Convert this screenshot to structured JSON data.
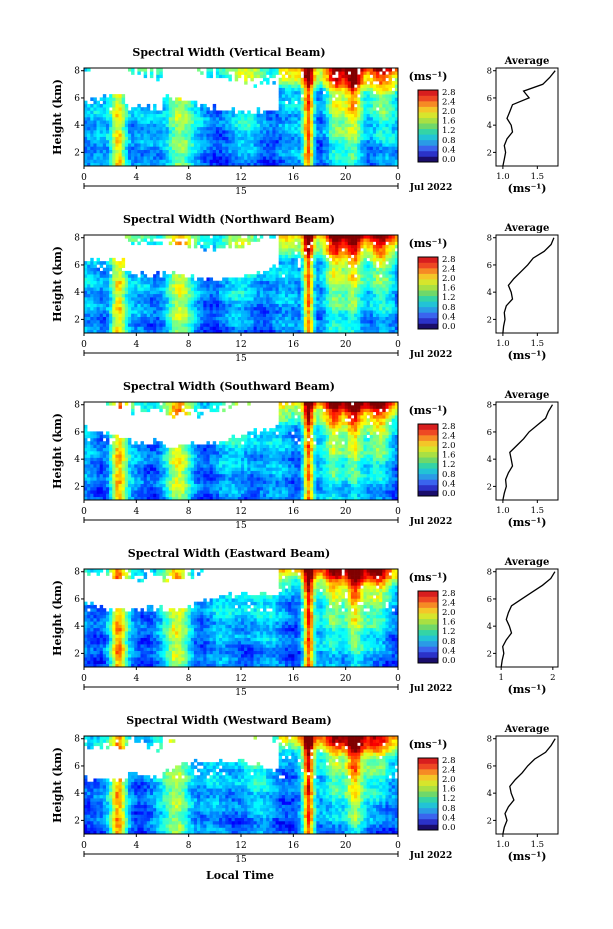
{
  "figure": {
    "bottom_xlabel": "Local Time",
    "date_day": "15",
    "date_label": "Jul 2022",
    "unit_label": "(ms⁻¹)",
    "panel_y_label": "Height (km)",
    "avg_title": "Average",
    "avg_xlabel": "(ms⁻¹)"
  },
  "chart_data": [
    {
      "type": "heatmap",
      "title": "Spectral Width (Vertical Beam)",
      "ylabel": "Height (km)",
      "xlabel": "",
      "x_ticks": [
        "0",
        "4",
        "8",
        "12",
        "16",
        "20",
        "0"
      ],
      "y_ticks": [
        "2",
        "4",
        "6",
        "8"
      ],
      "xlim": [
        0,
        24
      ],
      "ylim": [
        1,
        8.2
      ],
      "colorbar_ticks": [
        "0.0",
        "0.4",
        "0.8",
        "1.2",
        "1.6",
        "2.0",
        "2.4",
        "2.8"
      ],
      "colorbar_range": [
        0,
        3.0
      ],
      "average_profile": {
        "xlim": [
          0.9,
          1.8
        ],
        "x_ticks": [
          "1.0",
          "1.5"
        ],
        "ylim": [
          1,
          8.2
        ],
        "y_ticks": [
          "2",
          "4",
          "6",
          "8"
        ],
        "heights": [
          1.0,
          1.5,
          2.0,
          2.5,
          3.0,
          3.5,
          4.0,
          4.5,
          5.0,
          5.5,
          6.0,
          6.5,
          7.0,
          7.5,
          8.0
        ],
        "values": [
          1.0,
          1.02,
          1.04,
          1.02,
          1.06,
          1.14,
          1.12,
          1.06,
          1.1,
          1.14,
          1.38,
          1.3,
          1.58,
          1.68,
          1.76
        ]
      }
    },
    {
      "type": "heatmap",
      "title": "Spectral Width (Northward Beam)",
      "ylabel": "Height (km)",
      "xlabel": "",
      "x_ticks": [
        "0",
        "4",
        "8",
        "12",
        "16",
        "20",
        "0"
      ],
      "y_ticks": [
        "2",
        "4",
        "6",
        "8"
      ],
      "xlim": [
        0,
        24
      ],
      "ylim": [
        1,
        8.2
      ],
      "colorbar_ticks": [
        "0.0",
        "0.4",
        "0.8",
        "1.2",
        "1.6",
        "2.0",
        "2.4",
        "2.8"
      ],
      "colorbar_range": [
        0,
        3.0
      ],
      "average_profile": {
        "xlim": [
          0.9,
          1.8
        ],
        "x_ticks": [
          "1.0",
          "1.5"
        ],
        "ylim": [
          1,
          8.2
        ],
        "y_ticks": [
          "2",
          "4",
          "6",
          "8"
        ],
        "heights": [
          1.0,
          1.5,
          2.0,
          2.5,
          3.0,
          3.5,
          4.0,
          4.5,
          5.0,
          5.5,
          6.0,
          6.5,
          7.0,
          7.5,
          8.0
        ],
        "values": [
          1.0,
          1.01,
          1.03,
          1.02,
          1.05,
          1.14,
          1.12,
          1.08,
          1.16,
          1.26,
          1.36,
          1.44,
          1.6,
          1.7,
          1.74
        ]
      }
    },
    {
      "type": "heatmap",
      "title": "Spectral Width (Southward Beam)",
      "ylabel": "Height (km)",
      "xlabel": "",
      "x_ticks": [
        "0",
        "4",
        "8",
        "12",
        "16",
        "20",
        "0"
      ],
      "y_ticks": [
        "2",
        "4",
        "6",
        "8"
      ],
      "xlim": [
        0,
        24
      ],
      "ylim": [
        1,
        8.2
      ],
      "colorbar_ticks": [
        "0.0",
        "0.4",
        "0.8",
        "1.2",
        "1.6",
        "2.0",
        "2.4",
        "2.8"
      ],
      "colorbar_range": [
        0,
        3.0
      ],
      "average_profile": {
        "xlim": [
          0.9,
          1.8
        ],
        "x_ticks": [
          "1.0",
          "1.5"
        ],
        "ylim": [
          1,
          8.2
        ],
        "y_ticks": [
          "2",
          "4",
          "6",
          "8"
        ],
        "heights": [
          1.0,
          1.5,
          2.0,
          2.5,
          3.0,
          3.5,
          4.0,
          4.5,
          5.0,
          5.5,
          6.0,
          6.5,
          7.0,
          7.5,
          8.0
        ],
        "values": [
          1.0,
          1.02,
          1.05,
          1.04,
          1.08,
          1.14,
          1.12,
          1.1,
          1.2,
          1.3,
          1.38,
          1.5,
          1.62,
          1.66,
          1.72
        ]
      }
    },
    {
      "type": "heatmap",
      "title": "Spectral Width (Eastward Beam)",
      "ylabel": "Height (km)",
      "xlabel": "",
      "x_ticks": [
        "0",
        "4",
        "8",
        "12",
        "16",
        "20",
        "0"
      ],
      "y_ticks": [
        "2",
        "4",
        "6",
        "8"
      ],
      "xlim": [
        0,
        24
      ],
      "ylim": [
        1,
        8.2
      ],
      "colorbar_ticks": [
        "0.0",
        "0.4",
        "0.8",
        "1.2",
        "1.6",
        "2.0",
        "2.4",
        "2.8"
      ],
      "colorbar_range": [
        0,
        3.0
      ],
      "average_profile": {
        "xlim": [
          0.9,
          2.1
        ],
        "x_ticks": [
          "1",
          "2"
        ],
        "ylim": [
          1,
          8.2
        ],
        "y_ticks": [
          "2",
          "4",
          "6",
          "8"
        ],
        "heights": [
          1.0,
          1.5,
          2.0,
          2.5,
          3.0,
          3.5,
          4.0,
          4.5,
          5.0,
          5.5,
          6.0,
          6.5,
          7.0,
          7.5,
          8.0
        ],
        "values": [
          1.0,
          1.02,
          1.05,
          1.03,
          1.1,
          1.2,
          1.16,
          1.1,
          1.14,
          1.2,
          1.4,
          1.6,
          1.8,
          1.96,
          2.04
        ]
      }
    },
    {
      "type": "heatmap",
      "title": "Spectral Width (Westward Beam)",
      "ylabel": "Height (km)",
      "xlabel": "Local Time",
      "x_ticks": [
        "0",
        "4",
        "8",
        "12",
        "16",
        "20",
        "0"
      ],
      "y_ticks": [
        "2",
        "4",
        "6",
        "8"
      ],
      "xlim": [
        0,
        24
      ],
      "ylim": [
        1,
        8.2
      ],
      "colorbar_ticks": [
        "0.0",
        "0.4",
        "0.8",
        "1.2",
        "1.6",
        "2.0",
        "2.4",
        "2.8"
      ],
      "colorbar_range": [
        0,
        3.0
      ],
      "average_profile": {
        "xlim": [
          0.9,
          1.8
        ],
        "x_ticks": [
          "1.0",
          "1.5"
        ],
        "ylim": [
          1,
          8.2
        ],
        "y_ticks": [
          "2",
          "4",
          "6",
          "8"
        ],
        "heights": [
          1.0,
          1.5,
          2.0,
          2.5,
          3.0,
          3.5,
          4.0,
          4.5,
          5.0,
          5.5,
          6.0,
          6.5,
          7.0,
          7.5,
          8.0
        ],
        "values": [
          1.0,
          1.02,
          1.06,
          1.03,
          1.08,
          1.16,
          1.12,
          1.1,
          1.18,
          1.28,
          1.36,
          1.46,
          1.62,
          1.7,
          1.76
        ]
      }
    }
  ]
}
